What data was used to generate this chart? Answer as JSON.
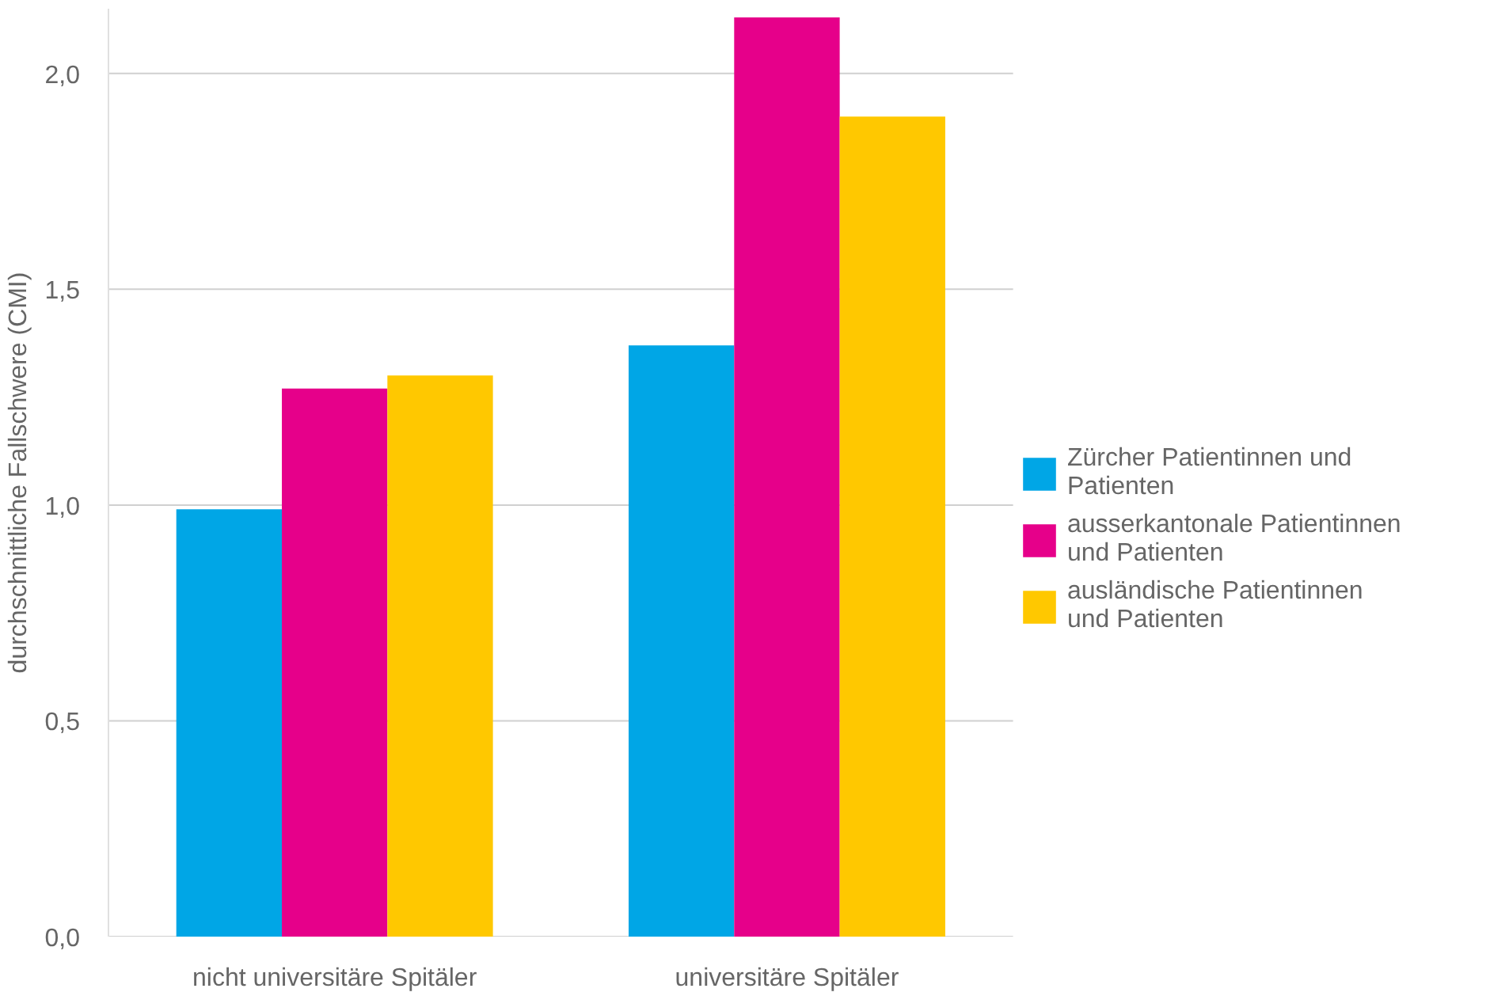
{
  "chart_data": {
    "type": "bar",
    "ylabel": "durchschnittliche Fallschwere (CMI)",
    "categories": [
      "nicht universitäre Spitäler",
      "universitäre Spitäler"
    ],
    "series": [
      {
        "name": "Zürcher Patientinnen und Patienten",
        "color": "#00a6e6",
        "values": [
          0.99,
          1.37
        ]
      },
      {
        "name": "ausserkantonale Patientinnen und Patienten",
        "color": "#e6008a",
        "values": [
          1.27,
          2.13
        ]
      },
      {
        "name": "ausländische Patientinnen und Patienten",
        "color": "#ffc800",
        "values": [
          1.3,
          1.9
        ]
      }
    ],
    "ylim": [
      0,
      2.15
    ],
    "yticks": [
      {
        "value": 0,
        "label": "0,0"
      },
      {
        "value": 0.5,
        "label": "0,5"
      },
      {
        "value": 1,
        "label": "1,0"
      },
      {
        "value": 1.5,
        "label": "1,5"
      },
      {
        "value": 2,
        "label": "2,0"
      }
    ],
    "grid": "y",
    "legend": "right"
  }
}
